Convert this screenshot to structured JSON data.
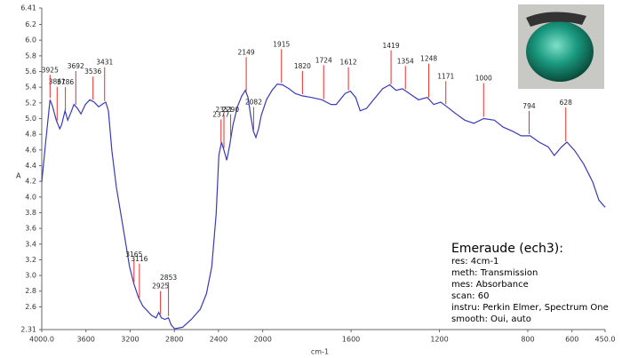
{
  "chart_data": {
    "type": "line",
    "ylabel": "A",
    "xlabel": "cm-1",
    "color": "#3a3ab8",
    "peak_color": "#e03030",
    "xlim": [
      4000,
      450
    ],
    "xbreak": 2000,
    "xticks": [
      {
        "value": 4000,
        "label": "4000.0"
      },
      3600,
      3200,
      2800,
      2400,
      2000,
      1600,
      1200,
      800,
      600,
      {
        "value": 450,
        "label": "450.0"
      }
    ],
    "ylim": [
      2.31,
      6.41
    ],
    "yticks": [
      2.31,
      2.6,
      2.8,
      {
        "value": 3,
        "label": "3.0"
      },
      3.2,
      3.4,
      3.6,
      3.8,
      {
        "value": 4,
        "label": "4.0"
      },
      4.2,
      4.4,
      4.6,
      4.8,
      {
        "value": 5,
        "label": "5.0"
      },
      5.2,
      5.4,
      5.6,
      5.8,
      {
        "value": 6,
        "label": "6.0"
      },
      6.2,
      6.41
    ],
    "x": [
      4000,
      3965,
      3925,
      3901,
      3869,
      3837,
      3821,
      3789,
      3765,
      3741,
      3709,
      3677,
      3645,
      3605,
      3565,
      3525,
      3485,
      3445,
      3421,
      3397,
      3365,
      3325,
      3285,
      3245,
      3205,
      3165,
      3125,
      3085,
      3045,
      3005,
      2965,
      2941,
      2917,
      2885,
      2853,
      2829,
      2797,
      2725,
      2645,
      2565,
      2509,
      2461,
      2421,
      2397,
      2373,
      2349,
      2325,
      2301,
      2269,
      2229,
      2189,
      2157,
      2133,
      2109,
      2085,
      2061,
      2037,
      2013,
      1983,
      1958,
      1934,
      1910,
      1881,
      1853,
      1821,
      1780,
      1732,
      1691,
      1667,
      1627,
      1603,
      1579,
      1559,
      1530,
      1498,
      1457,
      1425,
      1396,
      1368,
      1336,
      1295,
      1255,
      1226,
      1194,
      1166,
      1125,
      1085,
      1044,
      1000,
      951,
      911,
      870,
      830,
      789,
      749,
      708,
      680,
      647,
      623,
      587,
      547,
      506,
      478,
      450
    ],
    "values": [
      4.19,
      4.7,
      5.24,
      5.15,
      4.98,
      4.87,
      4.92,
      5.1,
      4.98,
      5.06,
      5.18,
      5.13,
      5.06,
      5.18,
      5.24,
      5.21,
      5.15,
      5.19,
      5.21,
      5.1,
      4.59,
      4.13,
      3.79,
      3.45,
      3.11,
      2.89,
      2.72,
      2.61,
      2.55,
      2.49,
      2.46,
      2.53,
      2.46,
      2.44,
      2.46,
      2.37,
      2.32,
      2.34,
      2.44,
      2.57,
      2.77,
      3.11,
      3.79,
      4.53,
      4.7,
      4.59,
      4.47,
      4.64,
      4.92,
      5.15,
      5.29,
      5.36,
      5.27,
      5.04,
      4.84,
      4.76,
      4.87,
      5.04,
      5.24,
      5.36,
      5.44,
      5.43,
      5.38,
      5.32,
      5.29,
      5.27,
      5.24,
      5.18,
      5.18,
      5.32,
      5.35,
      5.27,
      5.1,
      5.13,
      5.24,
      5.38,
      5.43,
      5.36,
      5.38,
      5.32,
      5.24,
      5.27,
      5.18,
      5.21,
      5.15,
      5.06,
      4.98,
      4.94,
      5.0,
      4.98,
      4.89,
      4.84,
      4.78,
      4.78,
      4.7,
      4.64,
      4.53,
      4.64,
      4.7,
      4.59,
      4.42,
      4.19,
      3.96,
      3.87
    ],
    "peaks": [
      3925,
      3861,
      3786,
      3692,
      3536,
      3431,
      3165,
      3116,
      2925,
      2853,
      2377,
      2351,
      2290,
      2149,
      2082,
      1915,
      1820,
      1724,
      1612,
      1419,
      1354,
      1248,
      1171,
      1000,
      794,
      628
    ]
  },
  "info": {
    "title": "Emeraude (ech3):",
    "lines": [
      "res: 4cm-1",
      "meth: Transmission",
      "mes: Absorbance",
      "scan: 60",
      "instru: Perkin Elmer, Spectrum One",
      "smooth: Oui, auto"
    ]
  }
}
